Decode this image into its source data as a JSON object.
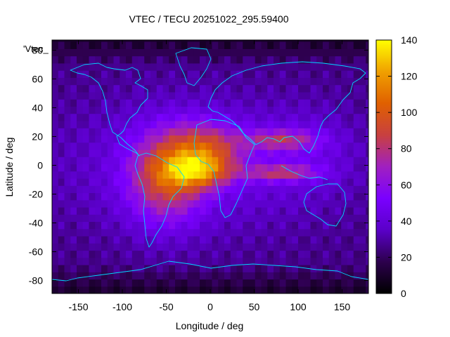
{
  "chart_data": {
    "type": "heatmap",
    "title": "VTEC / TECU 20251022_295.59400",
    "xlabel": "Longitude / deg",
    "ylabel": "Latitude / deg",
    "xlim": [
      -180,
      180
    ],
    "ylim": [
      -89,
      87
    ],
    "x_ticks": [
      -150,
      -100,
      -50,
      0,
      50,
      100,
      150
    ],
    "y_ticks": [
      -80,
      -60,
      -40,
      -20,
      0,
      20,
      40,
      60,
      80
    ],
    "colorbar": {
      "min": 0,
      "max": 140,
      "ticks": [
        0,
        20,
        40,
        60,
        80,
        100,
        120,
        140
      ],
      "colormap": [
        "#000000",
        "#2d004d",
        "#5a00c8",
        "#7a00ff",
        "#a020c0",
        "#c84040",
        "#e06000",
        "#f0a000",
        "#ffff00"
      ]
    },
    "series_label": "'Vtec_",
    "field_features": {
      "background_tecu": 25,
      "equatorial_anomaly_crest_tecu": 105,
      "south_america_africa_region_tecu": 75,
      "indian_ocean_band_tecu": 70,
      "polar_minimum_tecu": 8
    }
  }
}
